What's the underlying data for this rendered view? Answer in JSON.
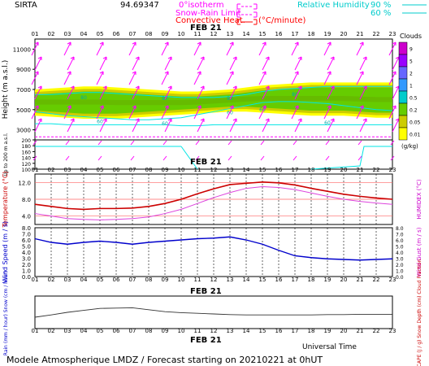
{
  "header": {
    "station": "SIRTA",
    "coords": "94.69347",
    "isotherm_label": "0°isotherm",
    "snow_limit_label": "Snow-Rain Limit",
    "convective_label": "Convective Heat.",
    "unit_label": "(°C/minute)",
    "rh_label": "Relative Humidity",
    "rh_90": "90 %",
    "rh_60": "60 %"
  },
  "footer": {
    "universal_time": "Universal Time",
    "caption": "Modele Atmospherique LMDZ / Forecast starting on 20210221 at 0hUT"
  },
  "colors": {
    "magenta": "#ff00ff",
    "cyan": "#00e5e5",
    "red": "#ff0000",
    "blue": "#0000cc",
    "axis": "#000000",
    "ylabel_red": "#cc0000"
  },
  "hours": [
    "01",
    "02",
    "03",
    "04",
    "05",
    "06",
    "07",
    "08",
    "09",
    "10",
    "11",
    "12",
    "13",
    "14",
    "15",
    "16",
    "17",
    "18",
    "19",
    "20",
    "21",
    "22",
    "23"
  ],
  "date_label": "FEB 21",
  "clouds": {
    "title": "Clouds",
    "levels": [
      "9",
      "5",
      "2",
      "1",
      "0.5",
      "0.2",
      "0.05",
      "0.01"
    ],
    "unit": "(g/kg)",
    "colors": [
      "#cc00cc",
      "#9900ff",
      "#6666ff",
      "#3399ff",
      "#00cccc",
      "#66cc00",
      "#cccc00",
      "#ffff00"
    ]
  },
  "chart_data": [
    {
      "type": "area",
      "panel": "vertical-profile",
      "ylabel": "Height (m a.s.l.)",
      "ylabel_lower": "Up to 200 m a.s.l.",
      "yticks": [
        11000,
        9000,
        7000,
        5000,
        3000
      ],
      "yticks_lower": [
        200,
        180,
        160,
        140,
        120,
        100
      ],
      "ylim": [
        2000,
        12000
      ],
      "isotherm_0C": [
        2300,
        2300,
        2300,
        2300,
        2300,
        2300,
        2300,
        2300,
        2300,
        2300,
        2300,
        2300,
        2300,
        2300,
        2300,
        2300,
        2300,
        2300,
        2300,
        2300,
        2300,
        2300,
        2300
      ],
      "rh_90_top": [
        6500,
        6500,
        6600,
        6700,
        6700,
        6600,
        6500,
        6400,
        6300,
        6200,
        6200,
        6200,
        6300,
        6500,
        6800,
        7000,
        7100,
        7200,
        7300,
        7300,
        7300,
        7300,
        7300
      ],
      "rh_60_mid": [
        4800,
        4600,
        4400,
        4300,
        4200,
        4100,
        4000,
        4000,
        4100,
        4200,
        4500,
        4800,
        5100,
        5400,
        5700,
        5800,
        5800,
        5700,
        5600,
        5400,
        5200,
        5000,
        4900
      ],
      "rh_60_low": [
        3600,
        3600,
        3500,
        3500,
        3500,
        3500,
        3500,
        3500,
        3500,
        3400,
        3400,
        3500,
        3500,
        3500,
        3500,
        3500,
        3500,
        3500,
        3500,
        3500,
        3500,
        3500,
        3500
      ],
      "cloud_top": [
        6500,
        6600,
        6700,
        6800,
        6800,
        6700,
        6600,
        6500,
        6400,
        6300,
        6300,
        6400,
        6500,
        6700,
        6900,
        7000,
        7100,
        7200,
        7200,
        7200,
        7200,
        7200,
        7200
      ],
      "cloud_bottom": [
        4900,
        4800,
        4700,
        4600,
        4600,
        4600,
        4700,
        4800,
        4900,
        5000,
        5100,
        5200,
        5300,
        5300,
        5200,
        5100,
        5000,
        4900,
        4900,
        4900,
        4800,
        4700,
        4700
      ],
      "labels_80": [
        "80",
        "80",
        "80",
        "80"
      ],
      "labels_60": [
        "60",
        "60",
        "60",
        "60",
        "60"
      ]
    },
    {
      "type": "line",
      "panel": "temperature",
      "ylabel": "Temperature (°C)",
      "ylabel_right": "HUMIDEX (°C)",
      "yticks": [
        12.0,
        8.0,
        4.0
      ],
      "ylim": [
        2,
        14
      ],
      "series": [
        {
          "name": "temperature",
          "values": [
            6.8,
            6.3,
            5.8,
            5.6,
            5.8,
            5.8,
            5.9,
            6.3,
            7.0,
            8.0,
            9.3,
            10.5,
            11.5,
            11.8,
            12.1,
            11.9,
            11.4,
            10.6,
            9.9,
            9.2,
            8.7,
            8.3,
            8.0
          ]
        },
        {
          "name": "humidex",
          "values": [
            4.6,
            4.0,
            3.4,
            3.2,
            3.1,
            3.2,
            3.4,
            3.8,
            4.6,
            5.6,
            7.0,
            8.4,
            9.6,
            10.6,
            11.0,
            10.8,
            10.3,
            9.5,
            8.7,
            8.0,
            7.5,
            7.1,
            6.8
          ]
        }
      ]
    },
    {
      "type": "line",
      "panel": "wind",
      "ylabel": "Wind Speed (m / s)",
      "ylabel_right": "Wind Gust (m / s)",
      "yticks": [
        8.0,
        7.0,
        6.0,
        5.0,
        4.0,
        3.0,
        2.0,
        1.0,
        0.0
      ],
      "ylim": [
        0,
        8
      ],
      "values": [
        6.2,
        5.6,
        5.3,
        5.6,
        5.8,
        5.6,
        5.3,
        5.6,
        5.8,
        6.0,
        6.2,
        6.3,
        6.5,
        6.0,
        5.3,
        4.3,
        3.4,
        3.1,
        2.9,
        2.8,
        2.7,
        2.8,
        2.9
      ]
    },
    {
      "type": "line",
      "panel": "rain-snow",
      "ylabel": "Rain (mm / hour) Snow (cm / hour)",
      "ylabel_right": "CAPE (J / g) Snow Depth (cm) Cloud Fraction",
      "values": [
        0.35,
        0.42,
        0.5,
        0.56,
        0.62,
        0.63,
        0.64,
        0.58,
        0.52,
        0.49,
        0.47,
        0.45,
        0.43,
        0.42,
        0.42,
        0.42,
        0.42,
        0.42,
        0.43,
        0.43,
        0.44,
        0.44,
        0.44
      ]
    }
  ]
}
